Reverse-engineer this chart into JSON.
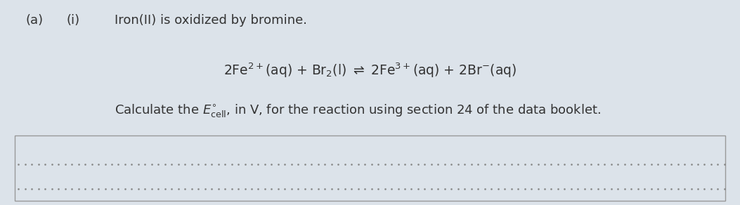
{
  "bg_color": "#dce3ea",
  "answer_box_color": "#dce3ea",
  "border_color": "#999999",
  "dot_color": "#888888",
  "text_color": "#333333",
  "label_a": "(a)",
  "label_i": "(i)",
  "title_text": "Iron(II) is oxidized by bromine.",
  "font_size_label": 13,
  "font_size_title": 13,
  "font_size_eq": 13.5,
  "font_size_calc": 13
}
